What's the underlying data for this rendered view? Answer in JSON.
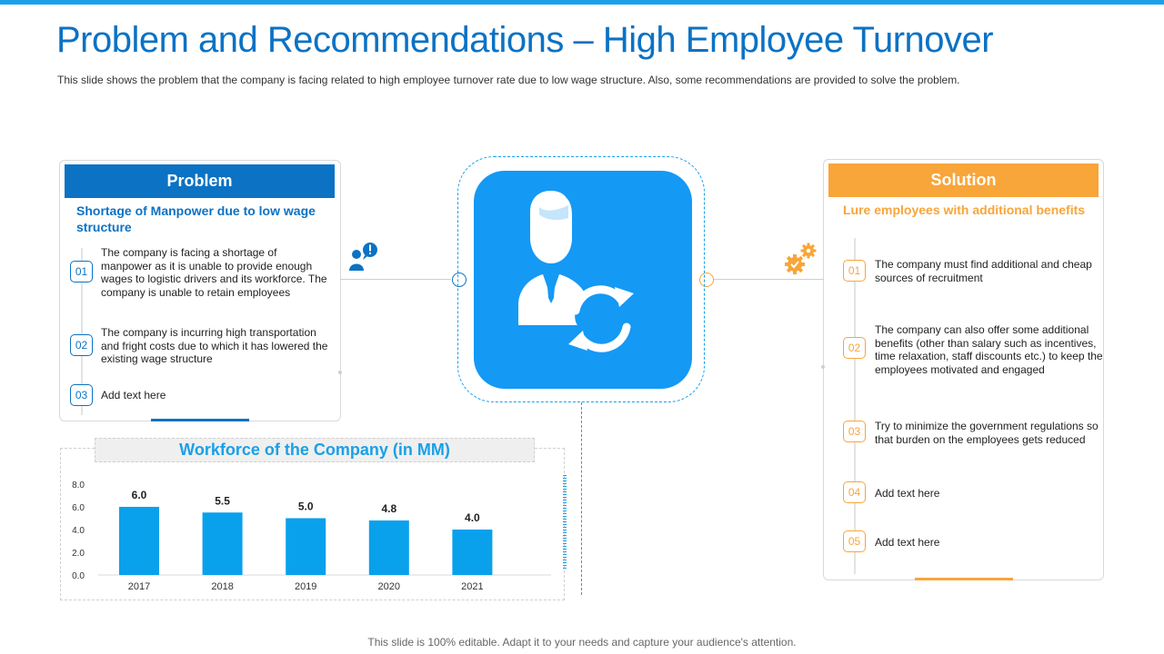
{
  "header": {
    "title": "Problem and Recommendations – High Employee Turnover",
    "subtitle": "This slide shows the problem that the company is facing related to high employee turnover rate due to low wage structure. Also, some recommendations are provided to solve the problem."
  },
  "problem": {
    "heading": "Problem",
    "subheading": "Shortage of Manpower due to low wage structure",
    "items": [
      {
        "num": "01",
        "text": "The company is facing a shortage of manpower as it is unable to provide enough wages to logistic drivers and its workforce. The company is unable to retain employees"
      },
      {
        "num": "02",
        "text": "The company is incurring high transportation and fright costs due to which it has lowered the existing wage structure"
      },
      {
        "num": "03",
        "text": "Add text here"
      }
    ]
  },
  "solution": {
    "heading": "Solution",
    "subheading": "Lure employees with additional benefits",
    "items": [
      {
        "num": "01",
        "text": "The company must find additional and cheap sources of recruitment"
      },
      {
        "num": "02",
        "text": "The company can also offer some additional benefits (other than salary such as incentives, time relaxation, staff discounts etc.) to keep the employees motivated and engaged"
      },
      {
        "num": "03",
        "text": "Try to minimize the government regulations so that burden on the employees gets reduced"
      },
      {
        "num": "04",
        "text": "Add text here"
      },
      {
        "num": "05",
        "text": "Add text here"
      }
    ]
  },
  "icons": {
    "center": "employee-turnover-icon",
    "problem_side": "user-alert-icon",
    "solution_side": "gears-icon"
  },
  "colors": {
    "primary": "#0b72c4",
    "accent_blue": "#1aa0e8",
    "tile_blue": "#1499f5",
    "orange": "#f8a53a"
  },
  "chart_data": {
    "type": "bar",
    "title": "Workforce of the Company (in MM)",
    "categories": [
      "2017",
      "2018",
      "2019",
      "2020",
      "2021"
    ],
    "values": [
      6.0,
      5.5,
      5.0,
      4.8,
      4.0
    ],
    "value_labels": [
      "6.0",
      "5.5",
      "5.0",
      "4.8",
      "4.0"
    ],
    "yticks": [
      "0.0",
      "2.0",
      "4.0",
      "6.0",
      "8.0"
    ],
    "ylim": [
      0,
      8
    ],
    "xlabel": "",
    "ylabel": "",
    "bar_color": "#0aa1ec",
    "grid": false,
    "legend": "none"
  },
  "footer": {
    "text": "This slide is 100% editable. Adapt it to your needs and capture your audience's attention."
  }
}
